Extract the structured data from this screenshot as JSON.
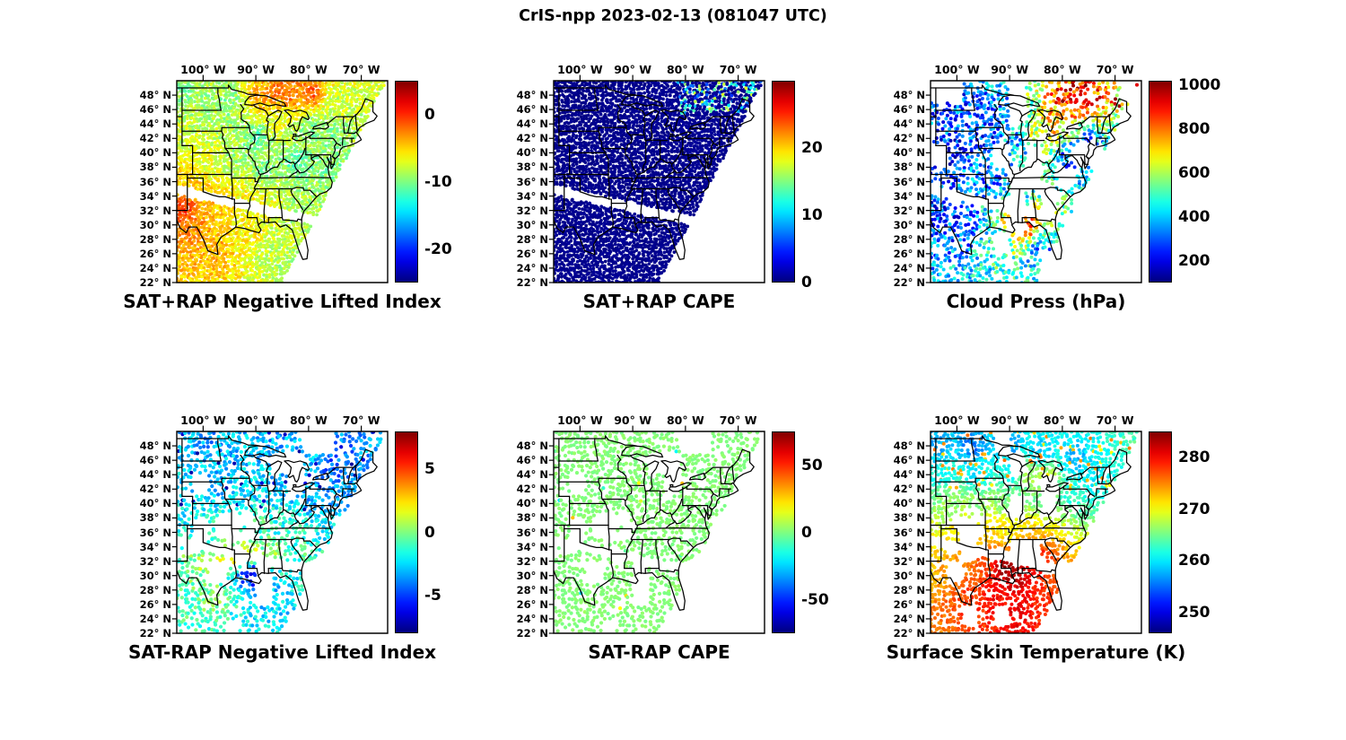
{
  "figure_title": "CrIS-npp 2023-02-13 (081047 UTC)",
  "colors": {
    "background": "#ffffff",
    "text": "#000000",
    "colormap": "jet"
  },
  "axes": {
    "lon_ticks": [
      {
        "lon": -100,
        "label": "100° W"
      },
      {
        "lon": -90,
        "label": "90° W"
      },
      {
        "lon": -80,
        "label": "80° W"
      },
      {
        "lon": -70,
        "label": "70° W"
      }
    ],
    "lat_ticks": [
      {
        "lat": 48,
        "label": "48° N"
      },
      {
        "lat": 46,
        "label": "46° N"
      },
      {
        "lat": 44,
        "label": "44° N"
      },
      {
        "lat": 42,
        "label": "42° N"
      },
      {
        "lat": 40,
        "label": "40° N"
      },
      {
        "lat": 38,
        "label": "38° N"
      },
      {
        "lat": 36,
        "label": "36° N"
      },
      {
        "lat": 34,
        "label": "34° N"
      },
      {
        "lat": 32,
        "label": "32° N"
      },
      {
        "lat": 30,
        "label": "30° N"
      },
      {
        "lat": 28,
        "label": "28° N"
      },
      {
        "lat": 26,
        "label": "26° N"
      },
      {
        "lat": 24,
        "label": "24° N"
      },
      {
        "lat": 22,
        "label": "22° N"
      }
    ],
    "map_extent": {
      "lon_min": -105,
      "lon_max": -65,
      "lat_min": 22,
      "lat_max": 50
    }
  },
  "swath": {
    "edge_lon_at_lat50": -65.2,
    "edge_slope": 0.708,
    "gap": {
      "lat_at_west_edge": 34.9,
      "slope_per_deg_lon": -0.165,
      "half_width_deg": 0.7
    }
  },
  "chart_data": [
    {
      "type": "scatter",
      "position": "top-left",
      "title": "SAT+RAP Negative Lifted Index",
      "colormap": "jet",
      "colorbar_range": [
        -25,
        5
      ],
      "colorbar_ticks": [
        0,
        -10,
        -20
      ],
      "render": {
        "seed": 11,
        "step": 4.6,
        "radius": 3.2,
        "coverage": 1,
        "blob": 1,
        "noise": 1.8
      },
      "field_points": [
        [
          -103.5,
          32.5,
          -0.5
        ],
        [
          -104.5,
          36.5,
          -5
        ],
        [
          -104,
          42,
          -8
        ],
        [
          -104.5,
          48,
          -10
        ],
        [
          -100,
          47,
          -9
        ],
        [
          -95,
          47,
          -10
        ],
        [
          -89,
          48,
          -3.5
        ],
        [
          -86,
          48.5,
          -2
        ],
        [
          -83.5,
          47.8,
          -2.5
        ],
        [
          -79.5,
          48.3,
          -1.5
        ],
        [
          -75,
          47,
          -8
        ],
        [
          -85,
          44.5,
          -7
        ],
        [
          -80,
          43.5,
          -10
        ],
        [
          -75.5,
          42.5,
          -10
        ],
        [
          -95,
          43,
          -9
        ],
        [
          -90,
          42,
          -11
        ],
        [
          -99,
          39,
          -7
        ],
        [
          -94,
          38.5,
          -9
        ],
        [
          -88,
          38,
          -10
        ],
        [
          -82,
          38.5,
          -11
        ],
        [
          -76,
          38,
          -10
        ],
        [
          -100,
          33,
          -4
        ],
        [
          -96,
          33,
          -5
        ],
        [
          -91,
          33,
          -6
        ],
        [
          -87,
          32,
          -7
        ],
        [
          -83,
          31,
          -9
        ],
        [
          -101,
          29.5,
          -3
        ],
        [
          -92,
          28.5,
          -6
        ],
        [
          -97,
          26.5,
          -4
        ],
        [
          -88,
          25.5,
          -8
        ],
        [
          -84,
          23.5,
          -9
        ]
      ],
      "description": "Dense CrIS+RAP swath west of a NE-SW edge; mostly -14 to -4 (cyan/green), maxima near 0 (orange) over NM/west TX and along the far northern edge; white inter-orbit gap band near 32-35N."
    },
    {
      "type": "scatter",
      "position": "top-middle",
      "title": "SAT+RAP CAPE",
      "colormap": "jet",
      "colorbar_range": [
        0,
        30
      ],
      "colorbar_ticks": [
        20,
        10,
        0
      ],
      "render": {
        "seed": 11,
        "step": 4.6,
        "radius": 3.2,
        "coverage": 1,
        "blob": 1,
        "noise": 0.3,
        "hot": {
          "lon_min": -81.5,
          "lat_min": 45.5,
          "prob": 0.35,
          "v_min": 5,
          "v_max": 18
        }
      },
      "field_points": [
        [
          -100,
          40,
          0.4
        ],
        [
          -90,
          36,
          0.4
        ],
        [
          -80,
          44,
          0.6
        ],
        [
          -95,
          28,
          0.5
        ],
        [
          -85,
          30,
          0.4
        ],
        [
          -103,
          46,
          0.3
        ]
      ],
      "description": "CAPE essentially 0 (dark blue) over the whole swath; a few 5-18 J/kg cyan-green dots in the far northeast near Lake Huron."
    },
    {
      "type": "scatter",
      "position": "top-right",
      "title": "Cloud Press (hPa)",
      "colormap": "jet",
      "colorbar_range": [
        100,
        1020
      ],
      "colorbar_ticks": [
        1000,
        800,
        600,
        400,
        200
      ],
      "render": {
        "seed": 33,
        "step": 5.4,
        "radius": 3.4,
        "coverage": 0.6,
        "blob": 0.82,
        "noise": 140,
        "hot": {
          "lon_min": -79,
          "lat_min": 45.5,
          "prob": 0.2,
          "v_min": 880,
          "v_max": 1010
        }
      },
      "field_points": [
        [
          -103,
          33,
          260
        ],
        [
          -100,
          40,
          230
        ],
        [
          -103,
          46.5,
          300
        ],
        [
          -97,
          47,
          260
        ],
        [
          -91,
          47,
          320
        ],
        [
          -86.5,
          46,
          550
        ],
        [
          -83,
          45.5,
          750
        ],
        [
          -80,
          47.5,
          880
        ],
        [
          -76.5,
          47.5,
          950
        ],
        [
          -85,
          43,
          620
        ],
        [
          -81.5,
          43.5,
          680
        ],
        [
          -88,
          42,
          380
        ],
        [
          -93.5,
          42,
          260
        ],
        [
          -98,
          36,
          330
        ],
        [
          -93,
          36.5,
          300
        ],
        [
          -88.5,
          34,
          420
        ],
        [
          -89,
          31,
          780
        ],
        [
          -87.5,
          30,
          880
        ],
        [
          -92,
          28.5,
          420
        ],
        [
          -84,
          26,
          350
        ],
        [
          -75.5,
          41,
          330
        ],
        [
          -79,
          39,
          300
        ],
        [
          -99,
          30,
          280
        ],
        [
          -104,
          37,
          260
        ]
      ],
      "description": "Sparse cloudy-sky retrievals; mostly 200-350 hPa high cloud (dark blue) with 600-950 hPa (green/yellow/orange) over the Great Lakes, near-1000 hPa red dots far northeast, and 800-900 hPa cluster on the central Gulf coast."
    },
    {
      "type": "scatter",
      "position": "bottom-left",
      "title": "SAT-RAP Negative Lifted Index",
      "colormap": "jet",
      "colorbar_range": [
        -8,
        8
      ],
      "colorbar_ticks": [
        5,
        0,
        -5
      ],
      "render": {
        "seed": 44,
        "step": 6.2,
        "radius": 3.6,
        "coverage": 0.7,
        "blob": 0.86,
        "noise": 1.3,
        "holes": [
          [
            -93.5,
            36.8,
            4.5,
            2.2,
            0.85
          ]
        ],
        "outliers": {
          "prob": 0.06,
          "lat_min": 39,
          "v_min": -7.8,
          "v_max": -6.3
        }
      },
      "field_points": [
        [
          -104,
          47,
          -3
        ],
        [
          -98,
          48,
          -3.5
        ],
        [
          -92,
          48,
          -3
        ],
        [
          -86,
          47,
          -3.5
        ],
        [
          -80,
          46,
          -3
        ],
        [
          -75,
          45.5,
          -4.5
        ],
        [
          -103,
          42,
          -2.5
        ],
        [
          -97,
          42,
          -3
        ],
        [
          -91,
          42,
          -2.5
        ],
        [
          -85,
          42,
          -3
        ],
        [
          -78.5,
          41.5,
          -3.5
        ],
        [
          -102,
          37.5,
          -2
        ],
        [
          -96,
          37,
          -1.5
        ],
        [
          -90,
          37,
          -1
        ],
        [
          -85,
          36.5,
          -1.5
        ],
        [
          -100,
          32,
          0.5
        ],
        [
          -95,
          32.5,
          2.2
        ],
        [
          -91,
          33,
          1.6
        ],
        [
          -87,
          33,
          1.2
        ],
        [
          -91.3,
          30.2,
          -6
        ],
        [
          -89.8,
          29.6,
          -6.5
        ],
        [
          -97,
          27,
          0
        ],
        [
          -93,
          26,
          -1.5
        ],
        [
          -85.5,
          26,
          -2.5
        ],
        [
          -82,
          34,
          -1
        ]
      ],
      "description": "Satellite-minus-RAP LI differences mostly -4 to 0 (cyan); scattered dark-blue -7 outliers across the north and a dark-blue cluster over Louisiana; +1 to +3 (yellow/orange) over the southern plains."
    },
    {
      "type": "scatter",
      "position": "bottom-middle",
      "title": "SAT-RAP CAPE",
      "colormap": "jet",
      "colorbar_range": [
        -75,
        75
      ],
      "colorbar_ticks": [
        50,
        0,
        -50
      ],
      "render": {
        "seed": 44,
        "step": 6.2,
        "radius": 3.6,
        "coverage": 0.7,
        "blob": 0.86,
        "noise": 2.4,
        "holes": [
          [
            -93.5,
            36.8,
            4.5,
            2.2,
            0.85
          ]
        ],
        "outliers": {
          "prob": 0.01,
          "v_min": -30,
          "v_max": 30
        }
      },
      "field_points": [
        [
          -90,
          38,
          1
        ]
      ],
      "description": "CAPE differences near 0 J/kg everywhere: a nearly uniform light-green dot field over the swath."
    },
    {
      "type": "scatter",
      "position": "bottom-right",
      "title": "Surface Skin Temperature (K)",
      "colormap": "jet",
      "colorbar_range": [
        246,
        285
      ],
      "colorbar_ticks": [
        280,
        270,
        260,
        250
      ],
      "render": {
        "seed": 66,
        "step": 5.6,
        "radius": 3.4,
        "coverage": 0.8,
        "blob": 0.9,
        "noise": 1.5,
        "holes": [
          [
            -97.5,
            37.5,
            3.5,
            2.0,
            0.7
          ]
        ],
        "outliers": {
          "prob": 0.1,
          "lat_min": 42,
          "v_min": 270,
          "v_max": 276
        }
      },
      "field_points": [
        [
          -104,
          48,
          257
        ],
        [
          -97,
          48,
          255.5
        ],
        [
          -90,
          48,
          257
        ],
        [
          -84,
          47,
          258
        ],
        [
          -77.5,
          46,
          257.5
        ],
        [
          -103,
          44,
          261
        ],
        [
          -96,
          44,
          260
        ],
        [
          -89.5,
          44.5,
          261
        ],
        [
          -86,
          44,
          267
        ],
        [
          -83,
          43.5,
          269
        ],
        [
          -102,
          40,
          266
        ],
        [
          -96,
          40,
          266
        ],
        [
          -90,
          40,
          265
        ],
        [
          -84.5,
          40.5,
          265
        ],
        [
          -78.5,
          41.5,
          262
        ],
        [
          -74.5,
          43.5,
          260
        ],
        [
          -100,
          36,
          271
        ],
        [
          -95,
          36,
          272
        ],
        [
          -90,
          36,
          271
        ],
        [
          -85.5,
          35.5,
          273
        ],
        [
          -99,
          32,
          275
        ],
        [
          -95,
          32,
          277
        ],
        [
          -91.2,
          30.8,
          283.5
        ],
        [
          -88.8,
          30.4,
          284
        ],
        [
          -87,
          31.5,
          281
        ],
        [
          -84.5,
          32.5,
          279
        ],
        [
          -93,
          27,
          280
        ],
        [
          -97,
          26,
          278
        ],
        [
          -89,
          24.5,
          281
        ]
      ],
      "description": "Skin temperature gradient from ~256 K (cyan) in the north to ~280 K (orange) in the south; warmest dark-red ~284 K cluster on the Gulf coast over Louisiana/Mississippi; scattered warmer dots over the upper Midwest and Northeast."
    }
  ]
}
